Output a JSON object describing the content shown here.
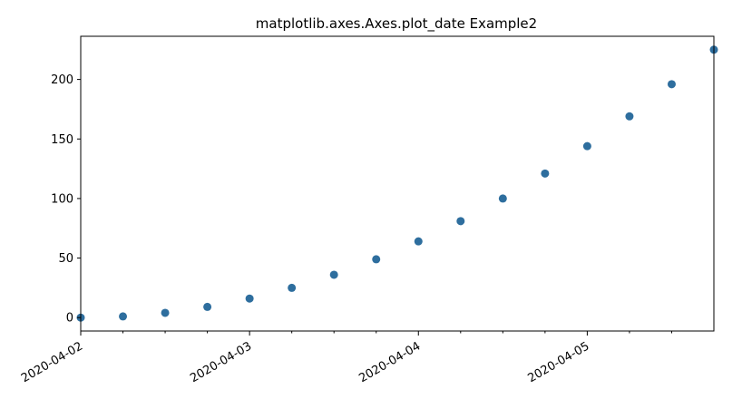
{
  "chart_data": {
    "type": "scatter",
    "title": "matplotlib.axes.Axes.plot_date Example2",
    "xlabel": "",
    "ylabel": "",
    "x_is_date": true,
    "x": [
      "2020-04-02 00:00",
      "2020-04-02 06:00",
      "2020-04-02 12:00",
      "2020-04-02 18:00",
      "2020-04-03 00:00",
      "2020-04-03 06:00",
      "2020-04-03 12:00",
      "2020-04-03 18:00",
      "2020-04-04 00:00",
      "2020-04-04 06:00",
      "2020-04-04 12:00",
      "2020-04-04 18:00",
      "2020-04-05 00:00",
      "2020-04-05 06:00",
      "2020-04-05 12:00",
      "2020-04-05 18:00"
    ],
    "y": [
      0,
      1,
      4,
      9,
      16,
      25,
      36,
      49,
      64,
      81,
      100,
      121,
      144,
      169,
      196,
      225
    ],
    "xlim": [
      "2020-04-02 00:00",
      "2020-04-05 18:00"
    ],
    "ylim": [
      -11.25,
      236.25
    ],
    "xticks": [
      "2020-04-02",
      "2020-04-03",
      "2020-04-04",
      "2020-04-05"
    ],
    "yticks": [
      0,
      50,
      100,
      150,
      200
    ],
    "grid": false,
    "marker_color": "#2e6e9e"
  }
}
